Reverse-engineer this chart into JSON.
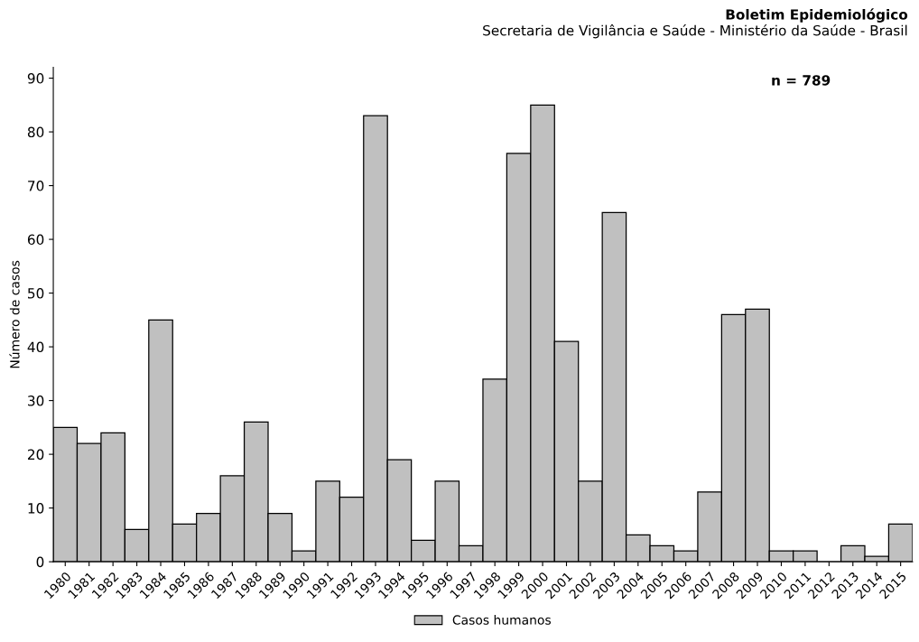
{
  "chart_data": {
    "type": "bar",
    "title": "Boletim Epidemiológico",
    "subtitle": "Secretaria de Vigilância e Saúde - Ministério da Saúde - Brasil",
    "ylabel": "Número de casos",
    "categories": [
      "1980",
      "1981",
      "1982",
      "1983",
      "1984",
      "1985",
      "1986",
      "1987",
      "1988",
      "1989",
      "1990",
      "1991",
      "1992",
      "1993",
      "1994",
      "1995",
      "1996",
      "1997",
      "1998",
      "1999",
      "2000",
      "2001",
      "2002",
      "2003",
      "2004",
      "2005",
      "2006",
      "2007",
      "2008",
      "2009",
      "2010",
      "2011",
      "2012",
      "2013",
      "2014",
      "2015"
    ],
    "series": [
      {
        "name": "Casos humanos",
        "color": "#c0c0c0",
        "values": [
          25,
          22,
          24,
          6,
          45,
          7,
          9,
          16,
          26,
          9,
          2,
          15,
          12,
          83,
          19,
          4,
          15,
          3,
          34,
          76,
          85,
          41,
          15,
          65,
          5,
          3,
          2,
          13,
          46,
          47,
          2,
          2,
          0,
          3,
          1,
          7
        ]
      }
    ],
    "ylim": [
      0,
      92
    ],
    "yticks": [
      0,
      10,
      20,
      30,
      40,
      50,
      60,
      70,
      80,
      90
    ],
    "annotations": [
      "n = 789"
    ],
    "legend": "bottom",
    "grid": false
  }
}
